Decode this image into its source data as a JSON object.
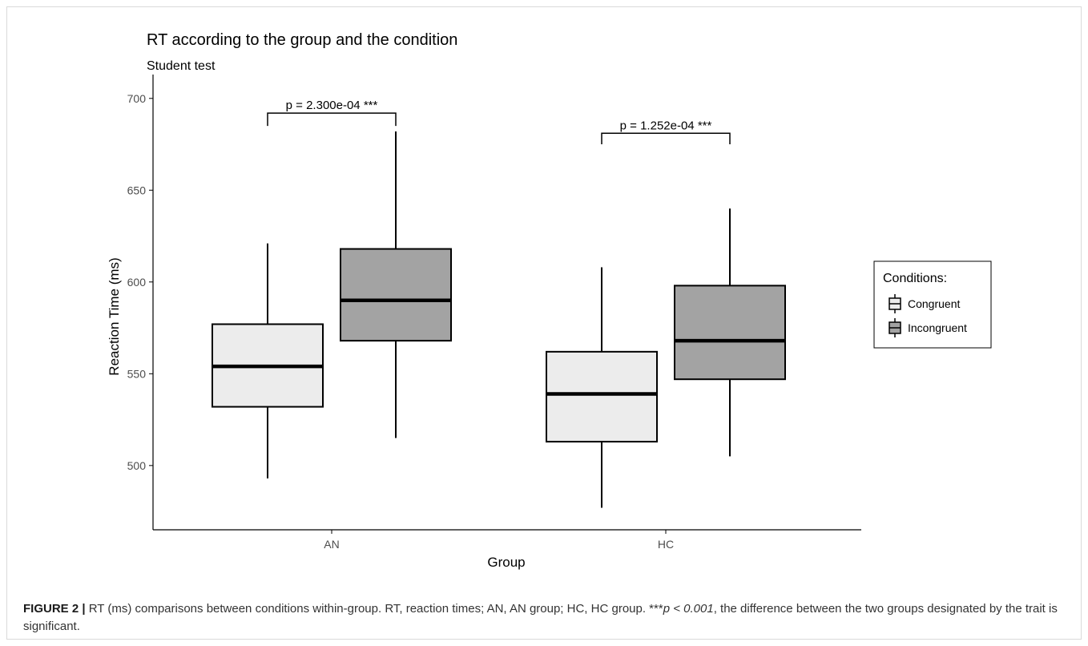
{
  "chart_data": {
    "type": "box",
    "title": "RT according to the group and the condition",
    "subtitle": "Student test",
    "xlabel": "Group",
    "ylabel": "Reaction Time (ms)",
    "ylim": [
      465,
      713
    ],
    "yticks": [
      500,
      550,
      600,
      650,
      700
    ],
    "categories": [
      "AN",
      "HC"
    ],
    "legend": {
      "title": "Conditions:",
      "position": "right",
      "entries": [
        "Congruent",
        "Incongruent"
      ]
    },
    "series": [
      {
        "name": "Congruent",
        "color": "#ececec",
        "boxes": [
          {
            "group": "AN",
            "min": 493,
            "q1": 532,
            "median": 554,
            "q3": 577,
            "max": 621
          },
          {
            "group": "HC",
            "min": 477,
            "q1": 513,
            "median": 539,
            "q3": 562,
            "max": 608
          }
        ]
      },
      {
        "name": "Incongruent",
        "color": "#a3a3a3",
        "boxes": [
          {
            "group": "AN",
            "min": 515,
            "q1": 568,
            "median": 590,
            "q3": 618,
            "max": 682
          },
          {
            "group": "HC",
            "min": 505,
            "q1": 547,
            "median": 568,
            "q3": 598,
            "max": 640
          }
        ]
      }
    ],
    "annotations": [
      {
        "group": "AN",
        "text": "p = 2.300e-04 ***",
        "y_bracket": 692,
        "y_tip": 685
      },
      {
        "group": "HC",
        "text": "p = 1.252e-04 ***",
        "y_bracket": 681,
        "y_tip": 675
      }
    ]
  },
  "caption": {
    "label": "FIGURE 2 |",
    "text_before": " RT (ms) comparisons between conditions within-group. RT, reaction times; AN, AN group; HC, HC group. ***",
    "p_text": "p < 0.001",
    "text_after": ", the difference between the two groups designated by the trait is significant."
  }
}
